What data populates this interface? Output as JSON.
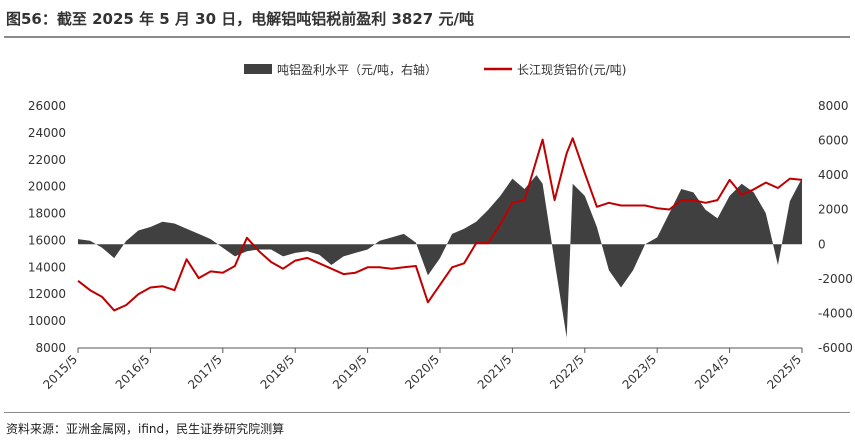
{
  "title": "图56：截至 2025 年 5 月 30 日，电解铝吨铝税前盈利 3827 元/吨",
  "source": "资料来源：亚洲金属网，ifind，民生证券研究院测算",
  "colors": {
    "profit": "#404040",
    "price": "#c00000",
    "rule": "#8a8a8a"
  },
  "chart_data": {
    "type": "area+line",
    "series": [
      {
        "name": "吨铝盈利水平（元/吨，右轴）",
        "type": "area",
        "axis": "right",
        "color": "#404040",
        "x": [
          "2015/5",
          "2015/7",
          "2015/9",
          "2015/11",
          "2016/1",
          "2016/3",
          "2016/5",
          "2016/7",
          "2016/9",
          "2016/11",
          "2017/1",
          "2017/3",
          "2017/5",
          "2017/7",
          "2017/9",
          "2017/11",
          "2018/1",
          "2018/3",
          "2018/5",
          "2018/7",
          "2018/9",
          "2018/11",
          "2019/1",
          "2019/3",
          "2019/5",
          "2019/7",
          "2019/9",
          "2019/11",
          "2020/1",
          "2020/3",
          "2020/5",
          "2020/7",
          "2020/9",
          "2020/11",
          "2021/1",
          "2021/3",
          "2021/5",
          "2021/7",
          "2021/9",
          "2021/10",
          "2021/12",
          "2022/2",
          "2022/3",
          "2022/5",
          "2022/7",
          "2022/9",
          "2022/11",
          "2023/1",
          "2023/3",
          "2023/5",
          "2023/7",
          "2023/9",
          "2023/11",
          "2024/1",
          "2024/3",
          "2024/5",
          "2024/7",
          "2024/9",
          "2024/11",
          "2025/1",
          "2025/3",
          "2025/5"
        ],
        "values": [
          300,
          200,
          -200,
          -800,
          200,
          800,
          1000,
          1300,
          1200,
          900,
          600,
          300,
          -200,
          -700,
          -400,
          -300,
          -300,
          -700,
          -500,
          -400,
          -600,
          -1200,
          -700,
          -500,
          -300,
          200,
          400,
          600,
          100,
          -1800,
          -800,
          600,
          900,
          1300,
          2000,
          2800,
          3800,
          3200,
          4000,
          3500,
          -1000,
          -5400,
          3500,
          2800,
          1000,
          -1500,
          -2500,
          -1500,
          0,
          400,
          1800,
          3200,
          3000,
          2000,
          1500,
          2800,
          3500,
          3000,
          1800,
          -1200,
          2500,
          3827
        ]
      },
      {
        "name": "长江现货铝价(元/吨)",
        "type": "line",
        "axis": "left",
        "color": "#c00000",
        "x": [
          "2015/5",
          "2015/7",
          "2015/9",
          "2015/11",
          "2016/1",
          "2016/3",
          "2016/5",
          "2016/7",
          "2016/9",
          "2016/11",
          "2017/1",
          "2017/3",
          "2017/5",
          "2017/7",
          "2017/9",
          "2017/11",
          "2018/1",
          "2018/3",
          "2018/5",
          "2018/7",
          "2018/9",
          "2018/11",
          "2019/1",
          "2019/3",
          "2019/5",
          "2019/7",
          "2019/9",
          "2019/11",
          "2020/1",
          "2020/3",
          "2020/5",
          "2020/7",
          "2020/9",
          "2020/11",
          "2021/1",
          "2021/3",
          "2021/5",
          "2021/7",
          "2021/9",
          "2021/10",
          "2021/12",
          "2022/2",
          "2022/3",
          "2022/5",
          "2022/7",
          "2022/9",
          "2022/11",
          "2023/1",
          "2023/3",
          "2023/5",
          "2023/7",
          "2023/9",
          "2023/11",
          "2024/1",
          "2024/3",
          "2024/5",
          "2024/7",
          "2024/9",
          "2024/11",
          "2025/1",
          "2025/3",
          "2025/5"
        ],
        "values": [
          13000,
          12300,
          11800,
          10800,
          11200,
          12000,
          12500,
          12600,
          12300,
          14600,
          13200,
          13700,
          13600,
          14100,
          16200,
          15200,
          14400,
          13900,
          14500,
          14700,
          14300,
          13900,
          13500,
          13600,
          14000,
          14000,
          13900,
          14000,
          14100,
          11400,
          12700,
          14000,
          14300,
          15800,
          15800,
          17200,
          18800,
          19000,
          22000,
          23500,
          19000,
          22500,
          23600,
          21000,
          18500,
          18800,
          18600,
          18600,
          18600,
          18400,
          18300,
          19000,
          19000,
          18800,
          19000,
          20500,
          19400,
          19800,
          20300,
          19900,
          20600,
          20500
        ]
      }
    ],
    "y_left": {
      "min": 8000,
      "max": 26000,
      "ticks": [
        8000,
        10000,
        12000,
        14000,
        16000,
        18000,
        20000,
        22000,
        24000,
        26000
      ]
    },
    "y_right": {
      "min": -6000,
      "max": 8000,
      "ticks": [
        -6000,
        -4000,
        -2000,
        0,
        2000,
        4000,
        6000,
        8000
      ]
    },
    "x_ticks": [
      "2015/5",
      "2016/5",
      "2017/5",
      "2018/5",
      "2019/5",
      "2020/5",
      "2021/5",
      "2022/5",
      "2023/5",
      "2024/5",
      "2025/5"
    ],
    "legend_position": "top-center",
    "grid": false
  }
}
